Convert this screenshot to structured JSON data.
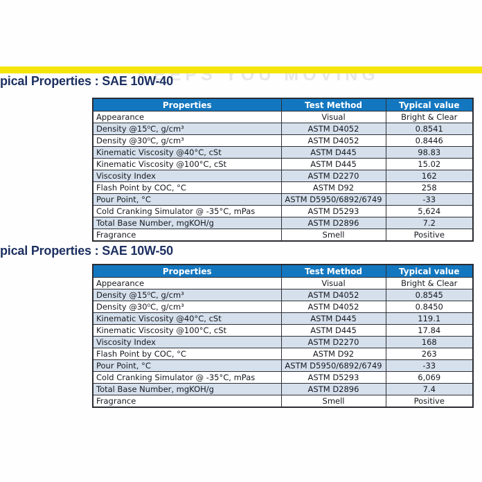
{
  "page": {
    "watermark": "KEEPS YOU MOVING",
    "accent_yellow": "#f5e408",
    "header_blue": "#1377c0",
    "shaded_row_color": "#d5e0ec",
    "title_color": "#1d3061"
  },
  "sections": [
    {
      "title": "pical Properties : SAE 10W-40",
      "columns": [
        "Properties",
        "Test Method",
        "Typical value"
      ],
      "rows": [
        [
          "Appearance",
          "Visual",
          "Bright & Clear"
        ],
        [
          "Density @15⁰C, g/cm³",
          "ASTM D4052",
          "0.8541"
        ],
        [
          "Density @30⁰C, g/cm³",
          "ASTM D4052",
          "0.8446"
        ],
        [
          "Kinematic Viscosity @40°C, cSt",
          "ASTM D445",
          "98.83"
        ],
        [
          "Kinematic Viscosity @100°C, cSt",
          "ASTM D445",
          "15.02"
        ],
        [
          "Viscosity Index",
          "ASTM D2270",
          "162"
        ],
        [
          "Flash Point by COC, °C",
          "ASTM D92",
          "258"
        ],
        [
          "Pour Point, °C",
          "ASTM D5950/6892/6749",
          "-33"
        ],
        [
          "Cold Cranking Simulator @ -35°C, mPas",
          "ASTM D5293",
          "5,624"
        ],
        [
          "Total Base Number, mgKOH/g",
          "ASTM D2896",
          "7.2"
        ],
        [
          "Fragrance",
          "Smell",
          "Positive"
        ]
      ]
    },
    {
      "title": "pical Properties : SAE 10W-50",
      "columns": [
        "Properties",
        "Test Method",
        "Typical value"
      ],
      "rows": [
        [
          "Appearance",
          "Visual",
          "Bright & Clear"
        ],
        [
          "Density @15⁰C, g/cm³",
          "ASTM D4052",
          "0.8545"
        ],
        [
          "Density @30⁰C, g/cm³",
          "ASTM D4052",
          "0.8450"
        ],
        [
          "Kinematic Viscosity @40°C, cSt",
          "ASTM D445",
          "119.1"
        ],
        [
          "Kinematic Viscosity @100°C, cSt",
          "ASTM D445",
          "17.84"
        ],
        [
          "Viscosity Index",
          "ASTM D2270",
          "168"
        ],
        [
          "Flash Point by COC, °C",
          "ASTM D92",
          "263"
        ],
        [
          "Pour Point, °C",
          "ASTM D5950/6892/6749",
          "-33"
        ],
        [
          "Cold Cranking Simulator @ -35°C, mPas",
          "ASTM D5293",
          "6,069"
        ],
        [
          "Total Base Number, mgKOH/g",
          "ASTM D2896",
          "7.4"
        ],
        [
          "Fragrance",
          "Smell",
          "Positive"
        ]
      ]
    }
  ]
}
